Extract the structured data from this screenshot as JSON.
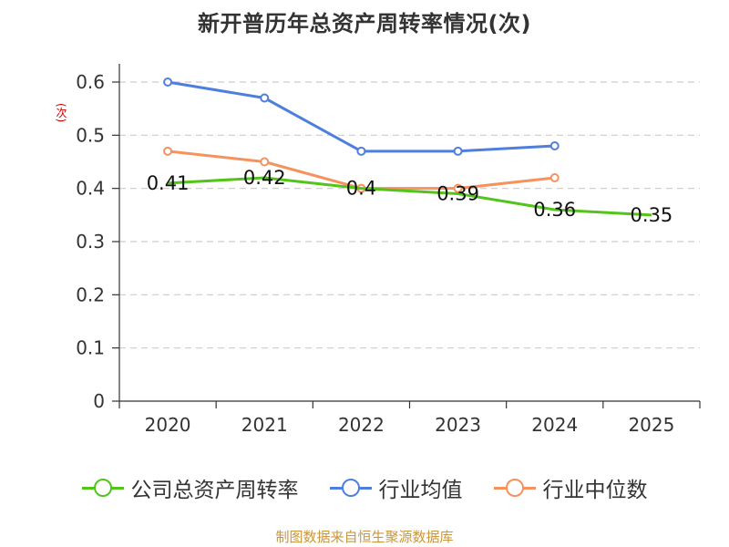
{
  "chart_data": {
    "type": "line",
    "title": "新开普历年总资产周转率情况(次)",
    "ylabel": "(次)",
    "xlabel": "",
    "categories": [
      "2020",
      "2021",
      "2022",
      "2023",
      "2024",
      "2025"
    ],
    "yticks": [
      "0",
      "0.1",
      "0.2",
      "0.3",
      "0.4",
      "0.5",
      "0.6"
    ],
    "ylim": [
      0,
      0.6
    ],
    "grid": true,
    "legend_position": "bottom",
    "series": [
      {
        "name": "公司总资产周转率",
        "color": "#52c41a",
        "values": [
          0.41,
          0.42,
          0.4,
          0.39,
          0.36,
          0.35
        ],
        "labels": [
          "0.41",
          "0.42",
          "0.4",
          "0.39",
          "0.36",
          "0.35"
        ],
        "show_markers": false,
        "show_labels": true
      },
      {
        "name": "行业均值",
        "color": "#4f7fde",
        "values": [
          0.6,
          0.57,
          0.47,
          0.47,
          0.48,
          null
        ],
        "show_markers": true,
        "show_labels": false
      },
      {
        "name": "行业中位数",
        "color": "#f5925e",
        "values": [
          0.47,
          0.45,
          0.4,
          0.4,
          0.42,
          null
        ],
        "show_markers": true,
        "show_labels": false
      }
    ]
  },
  "source": "制图数据来自恒生聚源数据库"
}
